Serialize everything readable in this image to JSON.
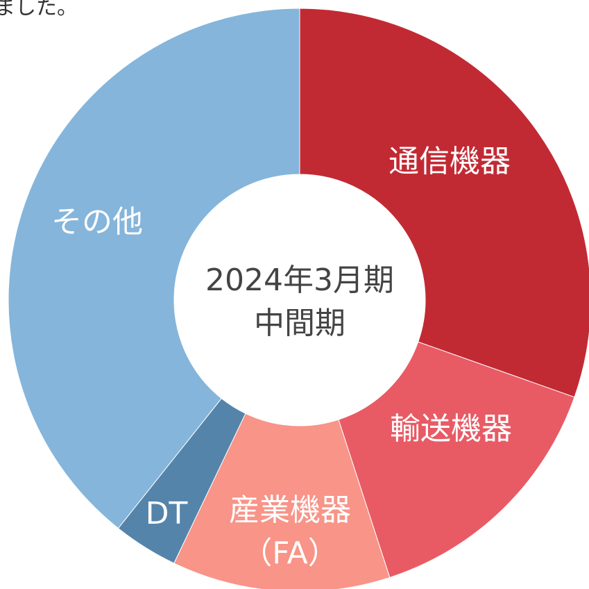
{
  "caption": "ました。",
  "chart_data": {
    "type": "donut",
    "title": "2024年3月期\n中間期",
    "categories": [
      "通信機器",
      "輸送機器",
      "産業機器\n（FA）",
      "DT",
      "その他"
    ],
    "values": [
      30.4,
      14.6,
      12.1,
      3.6,
      39.3
    ],
    "colors": [
      "#c22a33",
      "#e85b65",
      "#f89488",
      "#5584aa",
      "#85b5da"
    ]
  }
}
